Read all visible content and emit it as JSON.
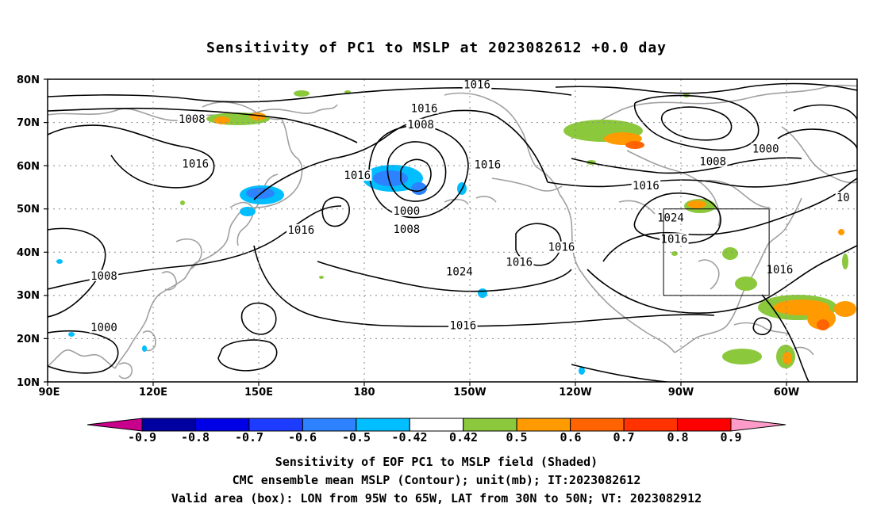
{
  "title": "Sensitivity of PC1 to MSLP at 2023082612 +0.0 day",
  "map": {
    "lat_labels": [
      "80N",
      "70N",
      "60N",
      "50N",
      "40N",
      "30N",
      "20N",
      "10N"
    ],
    "lon_labels": [
      "90E",
      "120E",
      "150E",
      "180",
      "150W",
      "120W",
      "90W",
      "60W"
    ],
    "lat_range": [
      10,
      80
    ],
    "lon_range_east": [
      90,
      320
    ],
    "gridlines": "dotted",
    "contour_labels": [
      {
        "text": "1016",
        "lon": 212,
        "lat": 78.8
      },
      {
        "text": "1008",
        "lon": 131,
        "lat": 70.8
      },
      {
        "text": "1016",
        "lon": 197,
        "lat": 73.3
      },
      {
        "text": "1008",
        "lon": 196,
        "lat": 69.6
      },
      {
        "text": "1000",
        "lon": 294,
        "lat": 64.0
      },
      {
        "text": "1008",
        "lon": 279,
        "lat": 61.0
      },
      {
        "text": "1016",
        "lon": 132,
        "lat": 60.5
      },
      {
        "text": "1016",
        "lon": 178,
        "lat": 57.8
      },
      {
        "text": "1016",
        "lon": 215,
        "lat": 60.3
      },
      {
        "text": "1016",
        "lon": 260,
        "lat": 55.4
      },
      {
        "text": "10",
        "lon": 316,
        "lat": 52.7
      },
      {
        "text": "1000",
        "lon": 192,
        "lat": 49.6
      },
      {
        "text": "1024",
        "lon": 267,
        "lat": 48.0
      },
      {
        "text": "1016",
        "lon": 162,
        "lat": 45.2
      },
      {
        "text": "1008",
        "lon": 192,
        "lat": 45.4
      },
      {
        "text": "1016",
        "lon": 268,
        "lat": 43.1
      },
      {
        "text": "1016",
        "lon": 236,
        "lat": 41.2
      },
      {
        "text": "1016",
        "lon": 224,
        "lat": 37.8
      },
      {
        "text": "1024",
        "lon": 207,
        "lat": 35.6
      },
      {
        "text": "1016",
        "lon": 298,
        "lat": 36.0
      },
      {
        "text": "1008",
        "lon": 106,
        "lat": 34.6
      },
      {
        "text": "1000",
        "lon": 106,
        "lat": 22.6
      },
      {
        "text": "1016",
        "lon": 208,
        "lat": 23.1
      }
    ],
    "valid_box": {
      "lon_west": -95,
      "lon_east": -65,
      "lat_south": 30,
      "lat_north": 50
    }
  },
  "colorbar": {
    "labels": [
      "-0.9",
      "-0.8",
      "-0.7",
      "-0.6",
      "-0.5",
      "-0.42",
      "0.42",
      "0.5",
      "0.6",
      "0.7",
      "0.8",
      "0.9"
    ],
    "colors": [
      "#c8008c",
      "#0000a0",
      "#0000e6",
      "#1e3cff",
      "#2d82ff",
      "#00beff",
      "#ffffff",
      "#8cc83c",
      "#ff9b00",
      "#ff6400",
      "#ff3200",
      "#ff0000",
      "#ff9bc8"
    ]
  },
  "captions": [
    "Sensitivity of EOF PC1 to MSLP field (Shaded)",
    "CMC ensemble mean MSLP (Contour); unit(mb); IT:2023082612",
    "Valid area (box): LON from 95W to 65W, LAT from 30N to 50N; VT: 2023082912"
  ]
}
